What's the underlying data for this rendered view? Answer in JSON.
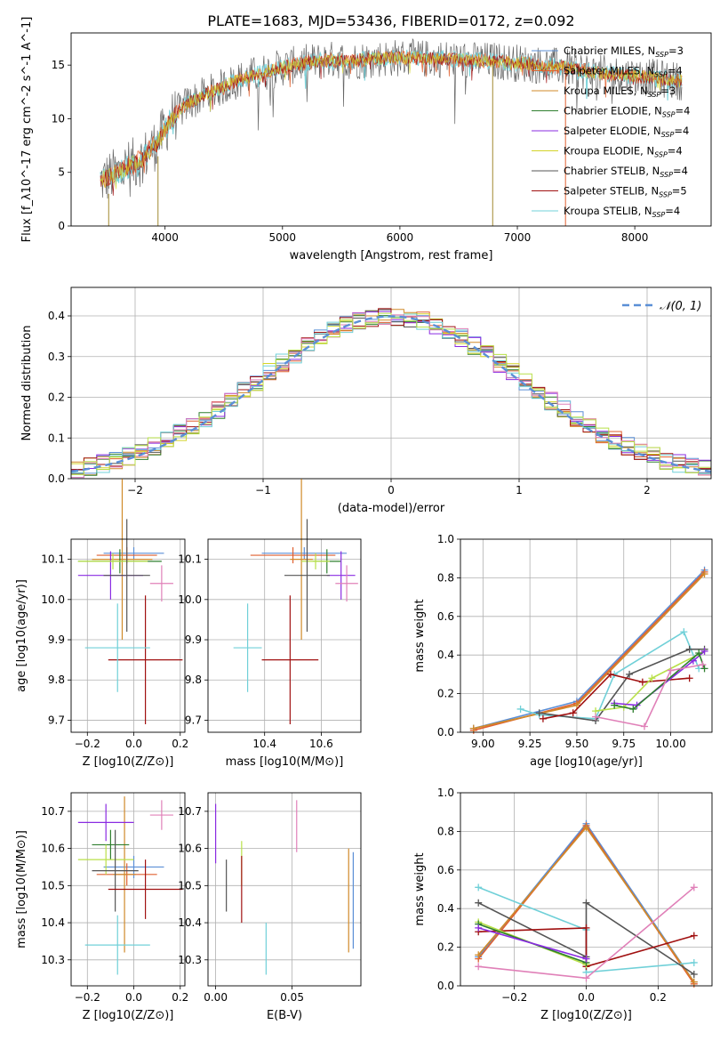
{
  "figure_title": "PLATE=1683, MJD=53436, FIBERID=0172, z=0.092",
  "colors": {
    "Chabrier MILES": "#5b8fd6",
    "Salpeter MILES": "#e06030",
    "Kroupa MILES": "#d08a2a",
    "Chabrier ELODIE": "#2f7f2f",
    "Salpeter ELODIE": "#8a2be2",
    "Kroupa ELODIE": "#d4d428",
    "Chabrier STELIB": "#555555",
    "Salpeter STELIB": "#a01010",
    "Kroupa STELIB": "#70d0d8",
    "pink": "#e080b8",
    "lime": "#b8e048",
    "normal_curve": "#5b8fd6",
    "grid": "#b0b0b0"
  },
  "chart_data": [
    {
      "id": "spectrum",
      "type": "line",
      "xlabel": "wavelength [Angstrom, rest frame]",
      "ylabel": "Flux [f_λ10^-17 erg cm^-2 s^-1 A^-1]",
      "xlim": [
        3200,
        8650
      ],
      "ylim": [
        0,
        18
      ],
      "xticks": [
        4000,
        5000,
        6000,
        7000,
        8000
      ],
      "yticks": [
        0,
        5,
        10,
        15
      ],
      "grid": false,
      "legend": "right",
      "legend_entries": [
        {
          "name": "Chabrier MILES",
          "nssp": "3"
        },
        {
          "name": "Salpeter MILES",
          "nssp": "4"
        },
        {
          "name": "Kroupa MILES",
          "nssp": "3"
        },
        {
          "name": "Chabrier ELODIE",
          "nssp": "4"
        },
        {
          "name": "Salpeter ELODIE",
          "nssp": "4"
        },
        {
          "name": "Kroupa ELODIE",
          "nssp": "4"
        },
        {
          "name": "Chabrier STELIB",
          "nssp": "4"
        },
        {
          "name": "Salpeter STELIB",
          "nssp": "5"
        },
        {
          "name": "Kroupa STELIB",
          "nssp": "4"
        }
      ],
      "continuum": {
        "x": [
          3450,
          3600,
          3800,
          3950,
          4050,
          4200,
          4400,
          4600,
          4800,
          5000,
          5200,
          5400,
          5600,
          5800,
          6000,
          6200,
          6400,
          6600,
          6800,
          7000,
          7200,
          7400,
          7700,
          8000,
          8400
        ],
        "y": [
          4.2,
          5.0,
          6.2,
          8.0,
          10.0,
          11.5,
          12.5,
          13.5,
          14.2,
          14.8,
          15.2,
          15.5,
          15.4,
          15.6,
          15.7,
          15.6,
          15.6,
          15.4,
          15.4,
          15.2,
          15.0,
          14.8,
          14.2,
          14.0,
          13.5
        ]
      },
      "spikes": [
        {
          "x": 3520,
          "y0": 3.0,
          "y1": 0.0
        },
        {
          "x": 3940,
          "y0": 6.5,
          "y1": 0.0
        },
        {
          "x": 6790,
          "y0": 15.2,
          "y1": 0.0
        },
        {
          "x": 7410,
          "y0": 14.8,
          "y1": 0.0
        }
      ]
    },
    {
      "id": "residuals",
      "type": "step",
      "xlabel": "(data-model)/error",
      "ylabel": "Normed distribution",
      "xlim": [
        -2.5,
        2.5
      ],
      "ylim": [
        0,
        0.47
      ],
      "xticks": [
        -2,
        -1,
        0,
        1,
        2
      ],
      "yticks": [
        0.0,
        0.1,
        0.2,
        0.3,
        0.4
      ],
      "grid": true,
      "legend": "top-right",
      "normal_label": "𝒩(0, 1)",
      "bin_width": 0.1
    },
    {
      "id": "age_vs_Z",
      "type": "errorbar",
      "xlabel": "Z [log10(Z/Z⊙)]",
      "ylabel": "age  [log10(age/yr)]",
      "xlim": [
        -0.27,
        0.22
      ],
      "ylim": [
        9.67,
        10.15
      ],
      "xticks": [
        -0.2,
        0.0,
        0.2
      ],
      "yticks": [
        9.7,
        9.8,
        9.9,
        10.0,
        10.1
      ],
      "grid": true,
      "points": [
        {
          "c": "Chabrier MILES",
          "x": 0.0,
          "xe": 0.13,
          "y": 10.115,
          "ye": 0.015
        },
        {
          "c": "Salpeter MILES",
          "x": -0.03,
          "xe": 0.13,
          "y": 10.11,
          "ye": 0.02
        },
        {
          "c": "Kroupa MILES",
          "x": -0.05,
          "xe": 0.13,
          "y": 10.1,
          "ye": 0.2
        },
        {
          "c": "Chabrier ELODIE",
          "x": -0.06,
          "xe": 0.18,
          "y": 10.095,
          "ye": 0.03
        },
        {
          "c": "Salpeter ELODIE",
          "x": -0.1,
          "xe": 0.14,
          "y": 10.06,
          "ye": 0.06
        },
        {
          "c": "lime",
          "x": -0.09,
          "xe": 0.15,
          "y": 10.095,
          "ye": 0.02
        },
        {
          "c": "Chabrier STELIB",
          "x": -0.03,
          "xe": 0.1,
          "y": 10.06,
          "ye": 0.14
        },
        {
          "c": "Salpeter STELIB",
          "x": 0.05,
          "xe": 0.16,
          "y": 9.85,
          "ye": 0.16
        },
        {
          "c": "Kroupa STELIB",
          "x": -0.07,
          "xe": 0.14,
          "y": 9.88,
          "ye": 0.11
        },
        {
          "c": "pink",
          "x": 0.12,
          "xe": 0.05,
          "y": 10.04,
          "ye": 0.045
        }
      ]
    },
    {
      "id": "age_vs_mass",
      "type": "errorbar",
      "xlabel": "mass [log10(M/M⊙)]",
      "ylabel": "",
      "xlim": [
        10.2,
        10.74
      ],
      "ylim": [
        9.67,
        10.15
      ],
      "xticks": [
        10.4,
        10.6
      ],
      "yticks": [
        9.7,
        9.8,
        9.9,
        10.0,
        10.1
      ],
      "grid": true,
      "points": [
        {
          "c": "Chabrier MILES",
          "x": 10.54,
          "xe": 0.15,
          "y": 10.115,
          "ye": 0.015
        },
        {
          "c": "Salpeter MILES",
          "x": 10.5,
          "xe": 0.15,
          "y": 10.11,
          "ye": 0.02
        },
        {
          "c": "Kroupa MILES",
          "x": 10.53,
          "xe": 0.04,
          "y": 10.1,
          "ye": 0.2
        },
        {
          "c": "Chabrier ELODIE",
          "x": 10.62,
          "xe": 0.05,
          "y": 10.095,
          "ye": 0.03
        },
        {
          "c": "Salpeter ELODIE",
          "x": 10.67,
          "xe": 0.05,
          "y": 10.06,
          "ye": 0.06
        },
        {
          "c": "lime",
          "x": 10.58,
          "xe": 0.05,
          "y": 10.095,
          "ye": 0.02
        },
        {
          "c": "Chabrier STELIB",
          "x": 10.55,
          "xe": 0.08,
          "y": 10.06,
          "ye": 0.14
        },
        {
          "c": "Salpeter STELIB",
          "x": 10.49,
          "xe": 0.1,
          "y": 9.85,
          "ye": 0.16
        },
        {
          "c": "Kroupa STELIB",
          "x": 10.34,
          "xe": 0.05,
          "y": 9.88,
          "ye": 0.11
        },
        {
          "c": "pink",
          "x": 10.69,
          "xe": 0.04,
          "y": 10.04,
          "ye": 0.045
        }
      ]
    },
    {
      "id": "weight_vs_age",
      "type": "line",
      "xlabel": "age  [log10(age/yr)]",
      "ylabel": "mass weight",
      "xlim": [
        8.88,
        10.22
      ],
      "ylim": [
        0.0,
        1.0
      ],
      "xticks": [
        9.0,
        9.25,
        9.5,
        9.75,
        10.0
      ],
      "xticklabels": [
        "9.00",
        "9.25",
        "9.50",
        "9.75",
        "10.00"
      ],
      "yticks": [
        0.0,
        0.2,
        0.4,
        0.6,
        0.8,
        1.0
      ],
      "grid": true,
      "series": [
        {
          "c": "Chabrier MILES",
          "x": [
            8.95,
            9.5,
            10.18
          ],
          "y": [
            0.02,
            0.16,
            0.84
          ]
        },
        {
          "c": "Salpeter MILES",
          "x": [
            8.95,
            9.5,
            10.18
          ],
          "y": [
            0.01,
            0.15,
            0.83
          ]
        },
        {
          "c": "Kroupa MILES",
          "x": [
            8.95,
            9.5,
            10.18
          ],
          "y": [
            0.02,
            0.14,
            0.82
          ]
        },
        {
          "c": "Kroupa STELIB",
          "x": [
            9.2,
            9.3,
            9.6,
            9.7,
            10.07,
            10.15
          ],
          "y": [
            0.12,
            0.09,
            0.07,
            0.3,
            0.52,
            0.33
          ]
        },
        {
          "c": "Chabrier STELIB",
          "x": [
            9.3,
            9.6,
            9.78,
            10.1,
            10.18
          ],
          "y": [
            0.1,
            0.06,
            0.3,
            0.43,
            0.43
          ]
        },
        {
          "c": "Salpeter STELIB",
          "x": [
            9.32,
            9.48,
            9.68,
            9.85,
            10.1
          ],
          "y": [
            0.07,
            0.1,
            0.3,
            0.26,
            0.28
          ]
        },
        {
          "c": "lime",
          "x": [
            9.6,
            9.75,
            9.9,
            10.18
          ],
          "y": [
            0.11,
            0.13,
            0.28,
            0.42
          ]
        },
        {
          "c": "Salpeter ELODIE",
          "x": [
            9.7,
            9.82,
            10.12,
            10.18
          ],
          "y": [
            0.15,
            0.14,
            0.37,
            0.42
          ]
        },
        {
          "c": "Chabrier ELODIE",
          "x": [
            9.7,
            9.8,
            10.15,
            10.18
          ],
          "y": [
            0.14,
            0.12,
            0.41,
            0.33
          ]
        },
        {
          "c": "pink",
          "x": [
            9.6,
            9.86,
            10.0,
            10.17
          ],
          "y": [
            0.08,
            0.03,
            0.32,
            0.35
          ]
        }
      ]
    },
    {
      "id": "mass_vs_Z",
      "type": "errorbar",
      "xlabel": "Z [log10(Z/Z⊙)]",
      "ylabel": "mass [log10(M/M⊙)]",
      "xlim": [
        -0.27,
        0.22
      ],
      "ylim": [
        10.23,
        10.75
      ],
      "xticks": [
        -0.2,
        0.0,
        0.2
      ],
      "yticks": [
        10.3,
        10.4,
        10.5,
        10.6,
        10.7
      ],
      "grid": true,
      "points": [
        {
          "c": "Chabrier MILES",
          "x": 0.0,
          "xe": 0.13,
          "y": 10.55,
          "ye": 0.03
        },
        {
          "c": "Salpeter MILES",
          "x": -0.03,
          "xe": 0.13,
          "y": 10.53,
          "ye": 0.03
        },
        {
          "c": "Kroupa MILES",
          "x": -0.04,
          "xe": 0.05,
          "y": 10.53,
          "ye": 0.21
        },
        {
          "c": "Chabrier ELODIE",
          "x": -0.1,
          "xe": 0.08,
          "y": 10.61,
          "ye": 0.04
        },
        {
          "c": "Salpeter ELODIE",
          "x": -0.12,
          "xe": 0.12,
          "y": 10.67,
          "ye": 0.05
        },
        {
          "c": "lime",
          "x": -0.12,
          "xe": 0.12,
          "y": 10.57,
          "ye": 0.04
        },
        {
          "c": "Chabrier STELIB",
          "x": -0.08,
          "xe": 0.1,
          "y": 10.54,
          "ye": 0.11
        },
        {
          "c": "Salpeter STELIB",
          "x": 0.05,
          "xe": 0.16,
          "y": 10.49,
          "ye": 0.08
        },
        {
          "c": "Kroupa STELIB",
          "x": -0.07,
          "xe": 0.14,
          "y": 10.34,
          "ye": 0.08
        },
        {
          "c": "pink",
          "x": 0.12,
          "xe": 0.05,
          "y": 10.69,
          "ye": 0.04
        }
      ]
    },
    {
      "id": "mass_vs_ebv",
      "type": "errorbar",
      "xlabel": "E(B-V)",
      "ylabel": "",
      "xlim": [
        -0.005,
        0.095
      ],
      "ylim": [
        10.23,
        10.75
      ],
      "xticks": [
        0.0,
        0.05
      ],
      "xticklabels": [
        "0.00",
        "0.05"
      ],
      "yticks": [
        10.3,
        10.4,
        10.5,
        10.6,
        10.7
      ],
      "grid": true,
      "points": [
        {
          "c": "Chabrier MILES",
          "x": 0.09,
          "xe": 0,
          "y": 10.46,
          "ye": 0.13
        },
        {
          "c": "Kroupa MILES",
          "x": 0.087,
          "xe": 0,
          "y": 10.46,
          "ye": 0.14
        },
        {
          "c": "Salpeter ELODIE",
          "x": 0.0,
          "xe": 0,
          "y": 10.64,
          "ye": 0.08
        },
        {
          "c": "lime",
          "x": 0.017,
          "xe": 0,
          "y": 10.56,
          "ye": 0.06
        },
        {
          "c": "Chabrier STELIB",
          "x": 0.007,
          "xe": 0,
          "y": 10.5,
          "ye": 0.07
        },
        {
          "c": "Salpeter STELIB",
          "x": 0.017,
          "xe": 0,
          "y": 10.49,
          "ye": 0.09
        },
        {
          "c": "Kroupa STELIB",
          "x": 0.033,
          "xe": 0,
          "y": 10.33,
          "ye": 0.07
        },
        {
          "c": "pink",
          "x": 0.053,
          "xe": 0,
          "y": 10.66,
          "ye": 0.07
        }
      ]
    },
    {
      "id": "weight_vs_Z",
      "type": "line",
      "xlabel": "Z [log10(Z/Z⊙)]",
      "ylabel": "mass weight",
      "xlim": [
        -0.35,
        0.35
      ],
      "ylim": [
        0.0,
        1.0
      ],
      "xticks": [
        -0.2,
        0.0,
        0.2
      ],
      "yticks": [
        0.0,
        0.2,
        0.4,
        0.6,
        0.8,
        1.0
      ],
      "grid": true,
      "series": [
        {
          "c": "Chabrier MILES",
          "x": [
            -0.3,
            0.0,
            0.3
          ],
          "y": [
            0.15,
            0.84,
            0.02
          ]
        },
        {
          "c": "Salpeter MILES",
          "x": [
            -0.3,
            0.0,
            0.3
          ],
          "y": [
            0.14,
            0.83,
            0.01
          ]
        },
        {
          "c": "Kroupa MILES",
          "x": [
            -0.3,
            0.0,
            0.3
          ],
          "y": [
            0.16,
            0.82,
            0.02
          ]
        },
        {
          "c": "Kroupa STELIB",
          "x": [
            -0.3,
            0.0,
            0.0,
            0.3
          ],
          "y": [
            0.51,
            0.29,
            0.07,
            0.12
          ]
        },
        {
          "c": "Chabrier STELIB",
          "x": [
            -0.3,
            0.0,
            0.0,
            0.3
          ],
          "y": [
            0.43,
            0.15,
            0.43,
            0.06
          ]
        },
        {
          "c": "Salpeter STELIB",
          "x": [
            -0.3,
            0.0,
            0.0,
            0.3
          ],
          "y": [
            0.28,
            0.3,
            0.1,
            0.26
          ]
        },
        {
          "c": "lime",
          "x": [
            -0.3,
            0.0
          ],
          "y": [
            0.33,
            0.11
          ]
        },
        {
          "c": "Chabrier ELODIE",
          "x": [
            -0.3,
            0.0
          ],
          "y": [
            0.32,
            0.12
          ]
        },
        {
          "c": "Salpeter ELODIE",
          "x": [
            -0.3,
            0.0
          ],
          "y": [
            0.3,
            0.14
          ]
        },
        {
          "c": "pink",
          "x": [
            -0.3,
            0.0,
            0.3
          ],
          "y": [
            0.1,
            0.04,
            0.51
          ]
        }
      ]
    }
  ]
}
